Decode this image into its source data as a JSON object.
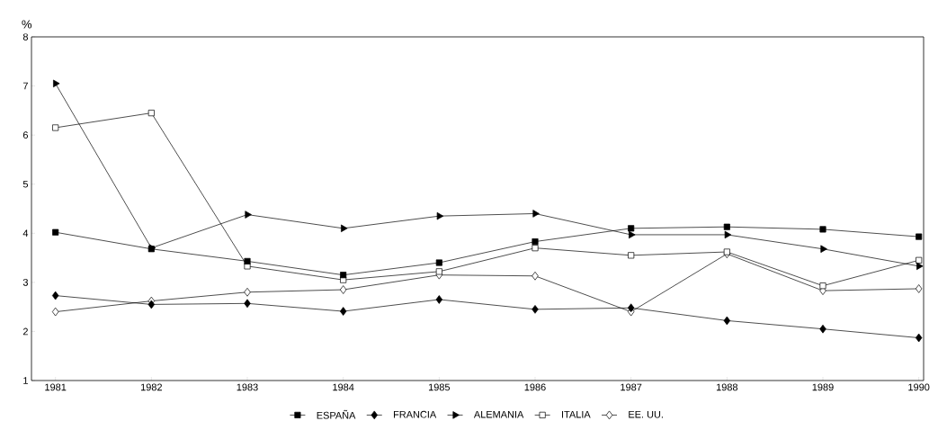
{
  "chart_data": {
    "type": "line",
    "ylabel": "%",
    "x": [
      1981,
      1982,
      1983,
      1984,
      1985,
      1986,
      1987,
      1988,
      1989,
      1990
    ],
    "series": [
      {
        "name": "ESPAÑA",
        "color": "#000000",
        "marker": "square",
        "values": [
          4.02,
          3.68,
          3.43,
          3.15,
          3.4,
          3.83,
          4.1,
          4.13,
          4.08,
          3.93
        ]
      },
      {
        "name": "FRANCIA",
        "color": "#000000",
        "marker": "diamond",
        "values": [
          2.73,
          2.55,
          2.57,
          2.41,
          2.65,
          2.45,
          2.48,
          2.22,
          2.05,
          1.87
        ]
      },
      {
        "name": "ALEMANIA",
        "color": "#000000",
        "marker": "triangle",
        "values": [
          7.05,
          3.7,
          4.38,
          4.1,
          4.35,
          4.4,
          3.97,
          3.97,
          3.68,
          3.33
        ]
      },
      {
        "name": "ITALIA",
        "color": "#000000",
        "marker": "square-open",
        "values": [
          6.15,
          6.45,
          3.33,
          3.05,
          3.22,
          3.7,
          3.55,
          3.62,
          2.93,
          3.45
        ]
      },
      {
        "name": "EE. UU.",
        "color": "#000000",
        "marker": "diamond-open",
        "values": [
          2.4,
          2.62,
          2.8,
          2.85,
          3.15,
          3.13,
          2.4,
          3.58,
          2.83,
          2.87
        ]
      }
    ],
    "xlim": [
      1980.75,
      1990.05
    ],
    "ylim": [
      1,
      8
    ],
    "xticks": [
      1981,
      1982,
      1983,
      1984,
      1985,
      1986,
      1987,
      1988,
      1989,
      1990
    ],
    "yticks": [
      1,
      2,
      3,
      4,
      5,
      6,
      7,
      8
    ],
    "grid": false,
    "legend": "bottom",
    "line_style": "solid"
  }
}
